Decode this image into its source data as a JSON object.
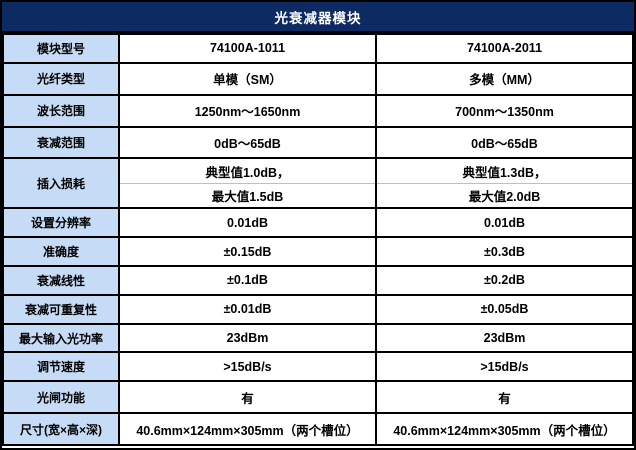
{
  "header": {
    "title": "光衰减器模块"
  },
  "colors": {
    "header_bg": "#0e2a63",
    "label_bg": "#c6dcf6",
    "border": "#000000",
    "subline_divider": "#bfbfbf"
  },
  "table": {
    "rows": [
      {
        "label": "模块型号",
        "values": [
          "74100A-1011",
          "74100A-2011"
        ]
      },
      {
        "label": "光纤类型",
        "values": [
          "单模（SM）",
          "多模（MM）"
        ]
      },
      {
        "label": "波长范围",
        "values": [
          "1250nm～1650nm",
          "700nm～1350nm"
        ]
      },
      {
        "label": "衰减范围",
        "values": [
          "0dB～65dB",
          "0dB～65dB"
        ]
      },
      {
        "label": "插入损耗",
        "values": [
          [
            "典型值1.0dB，",
            "最大值1.5dB"
          ],
          [
            "典型值1.3dB，",
            "最大值2.0dB"
          ]
        ]
      },
      {
        "label": "设置分辨率",
        "values": [
          "0.01dB",
          "0.01dB"
        ]
      },
      {
        "label": "准确度",
        "values": [
          "±0.15dB",
          "±0.3dB"
        ]
      },
      {
        "label": "衰减线性",
        "values": [
          "±0.1dB",
          "±0.2dB"
        ]
      },
      {
        "label": "衰减可重复性",
        "values": [
          "±0.01dB",
          "±0.05dB"
        ]
      },
      {
        "label": "最大输入光功率",
        "values": [
          "23dBm",
          "23dBm"
        ]
      },
      {
        "label": "调节速度",
        "values": [
          ">15dB/s",
          ">15dB/s"
        ]
      },
      {
        "label": "光闸功能",
        "values": [
          "有",
          "有"
        ]
      },
      {
        "label": "尺寸(宽×高×深)",
        "values": [
          "40.6mm×124mm×305mm（两个槽位）",
          "40.6mm×124mm×305mm（两个槽位）"
        ]
      }
    ]
  }
}
